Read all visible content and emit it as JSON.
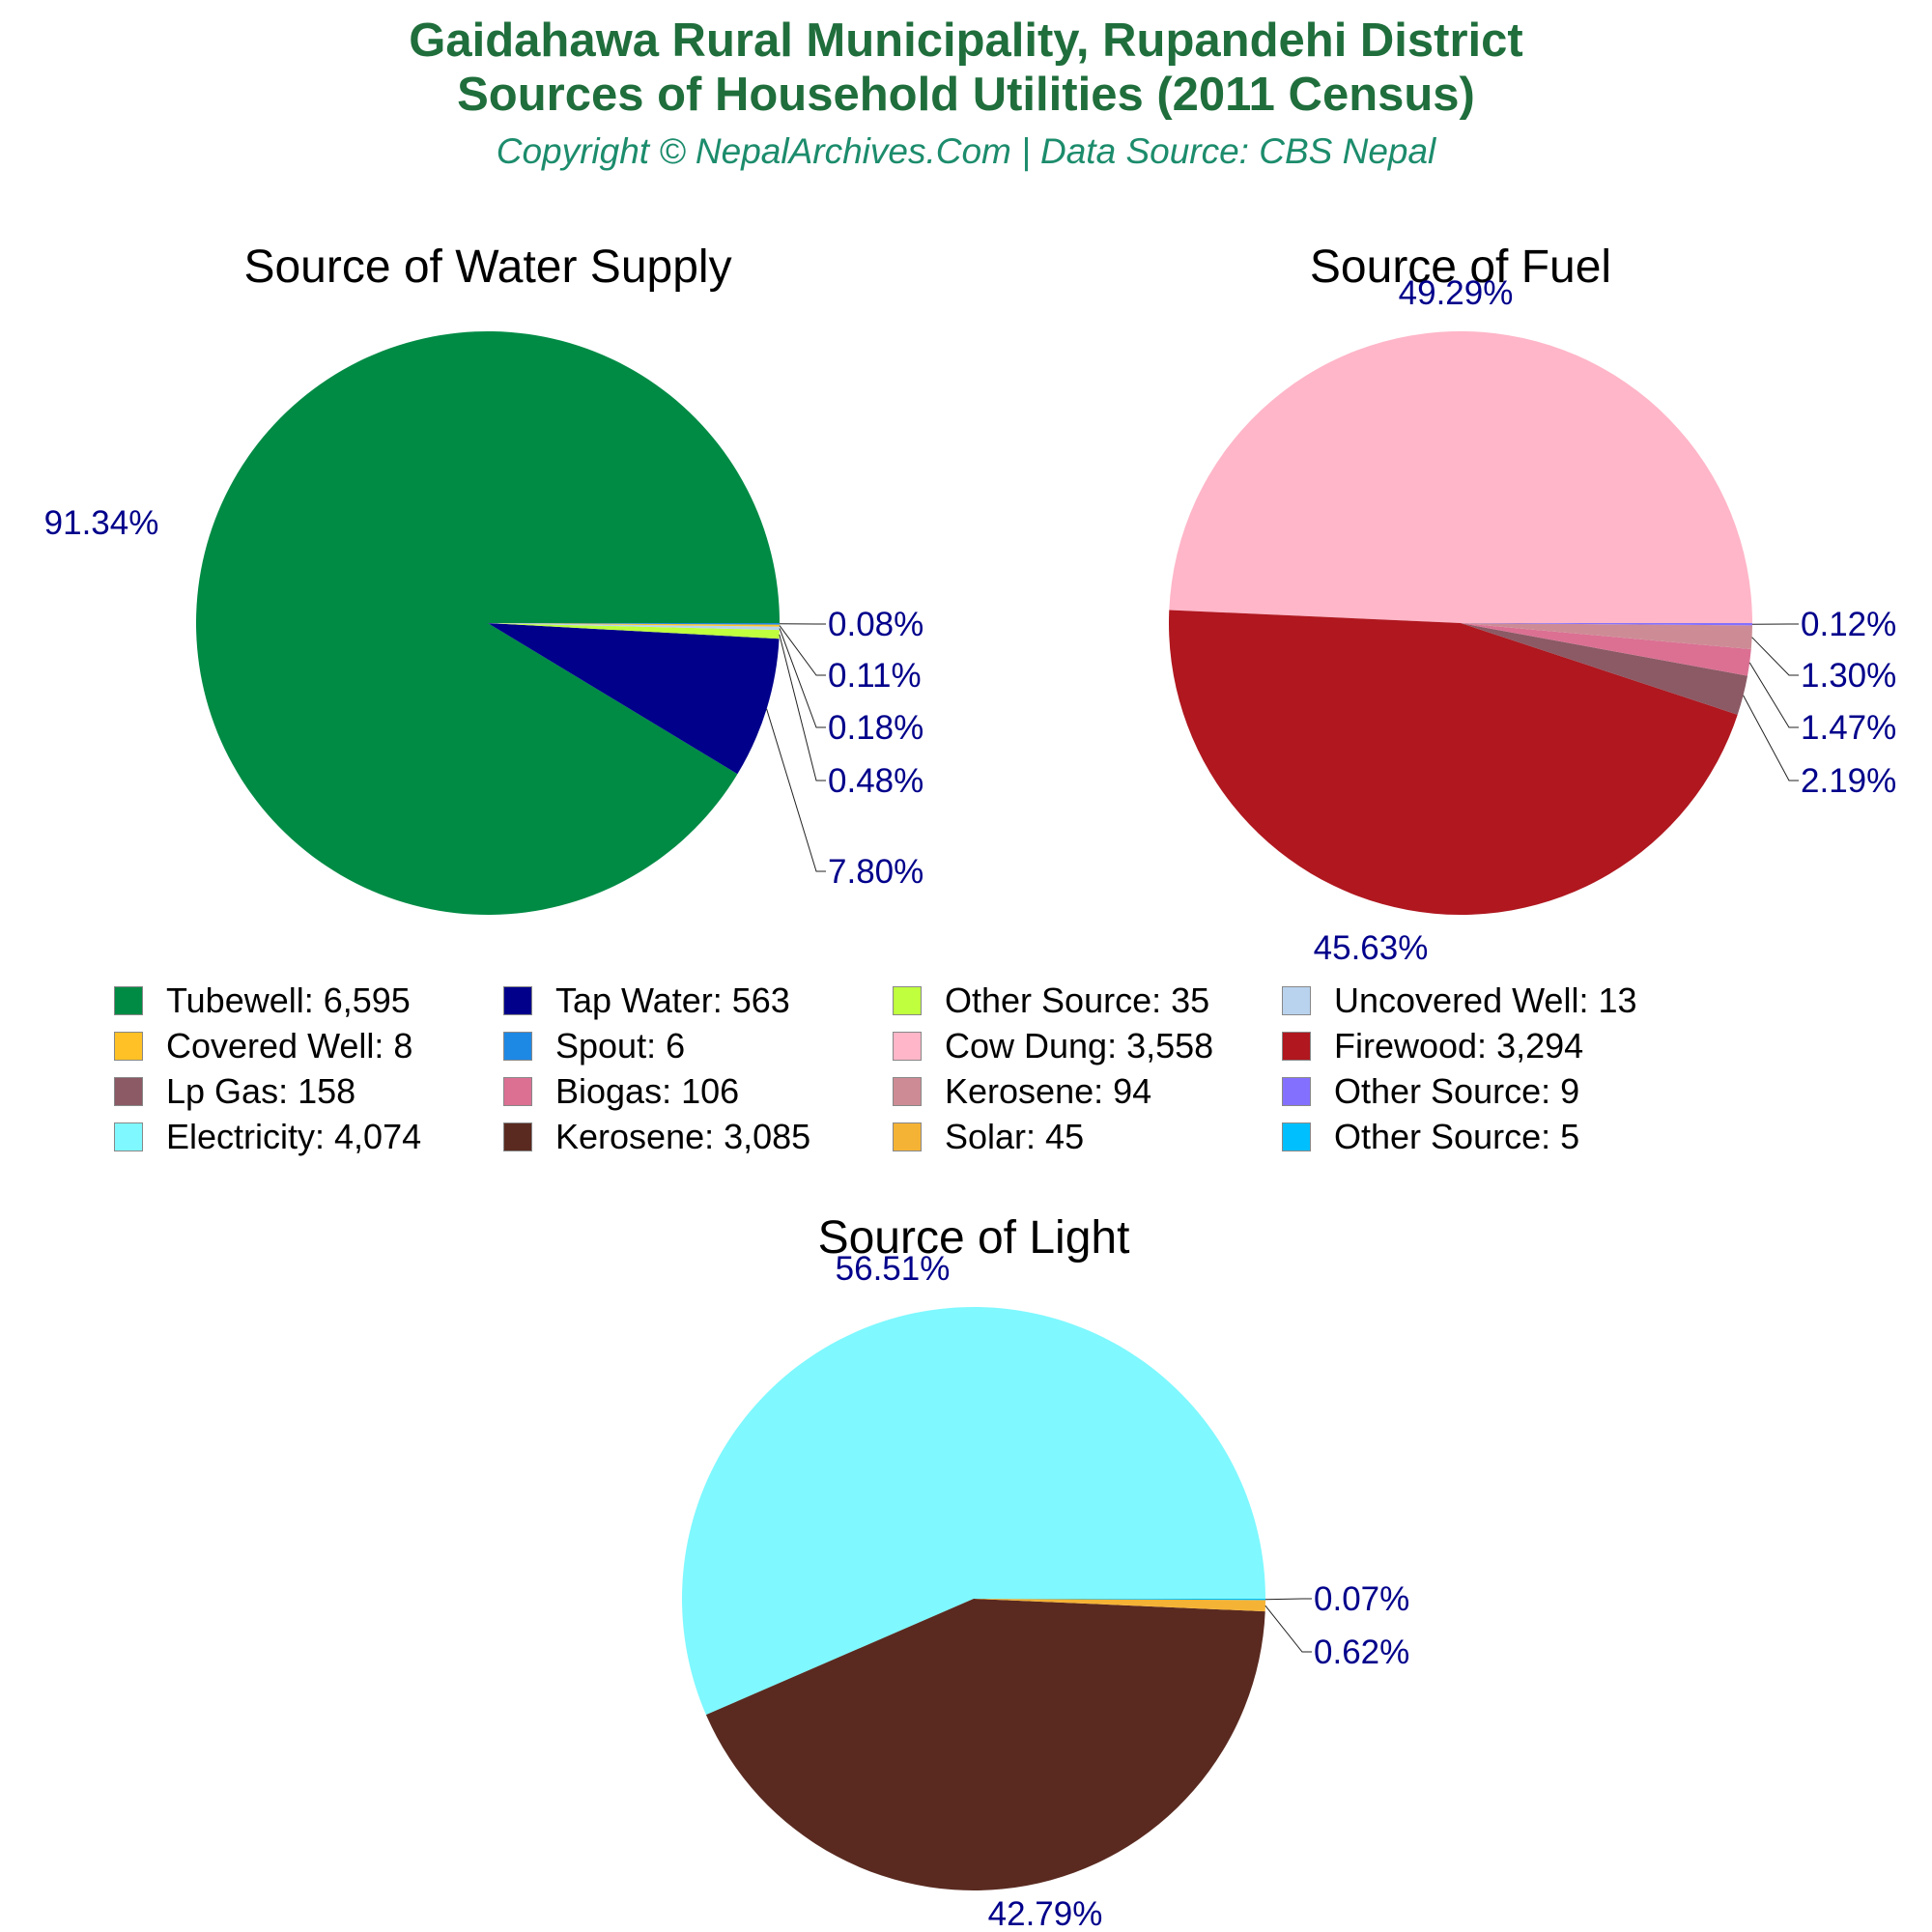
{
  "header": {
    "title_line1": "Gaidahawa Rural Municipality, Rupandehi District",
    "title_line2": "Sources of Household Utilities (2011 Census)",
    "copyright": "Copyright © NepalArchives.Com | Data Source: CBS Nepal"
  },
  "chart_data": [
    {
      "type": "pie",
      "title": "Source of Water Supply",
      "slices": [
        {
          "label": "Tubewell",
          "value": 6595,
          "percent_label": "91.34%",
          "color": "#008b45"
        },
        {
          "label": "Tap Water",
          "value": 563,
          "percent_label": "7.80%",
          "color": "#00008b"
        },
        {
          "label": "Other Source",
          "value": 35,
          "percent_label": "0.48%",
          "color": "#c0ff3e"
        },
        {
          "label": "Uncovered Well",
          "value": 13,
          "percent_label": "0.18%",
          "color": "#b9d3ee"
        },
        {
          "label": "Covered Well",
          "value": 8,
          "percent_label": "0.11%",
          "color": "#ffc125"
        },
        {
          "label": "Spout",
          "value": 6,
          "percent_label": "0.08%",
          "color": "#1e88e5"
        }
      ]
    },
    {
      "type": "pie",
      "title": "Source of Fuel",
      "slices": [
        {
          "label": "Cow Dung",
          "value": 3558,
          "percent_label": "49.29%",
          "color": "#ffb6c8"
        },
        {
          "label": "Firewood",
          "value": 3294,
          "percent_label": "45.63%",
          "color": "#b0171f"
        },
        {
          "label": "Lp Gas",
          "value": 158,
          "percent_label": "2.19%",
          "color": "#8b5a65"
        },
        {
          "label": "Biogas",
          "value": 106,
          "percent_label": "1.47%",
          "color": "#db7093"
        },
        {
          "label": "Kerosene",
          "value": 94,
          "percent_label": "1.30%",
          "color": "#cd8c95"
        },
        {
          "label": "Other Source",
          "value": 9,
          "percent_label": "0.12%",
          "color": "#8470ff"
        }
      ]
    },
    {
      "type": "pie",
      "title": "Source of Light",
      "slices": [
        {
          "label": "Electricity",
          "value": 4074,
          "percent_label": "56.51%",
          "color": "#7ff8ff"
        },
        {
          "label": "Kerosene",
          "value": 3085,
          "percent_label": "42.79%",
          "color": "#5a2a20"
        },
        {
          "label": "Solar",
          "value": 45,
          "percent_label": "0.62%",
          "color": "#f5b335"
        },
        {
          "label": "Other Source",
          "value": 5,
          "percent_label": "0.07%",
          "color": "#00bfff"
        }
      ]
    }
  ],
  "legend": [
    {
      "text": "Tubewell: 6,595",
      "color": "#008b45"
    },
    {
      "text": "Tap Water: 563",
      "color": "#00008b"
    },
    {
      "text": "Other Source: 35",
      "color": "#c0ff3e"
    },
    {
      "text": "Uncovered Well: 13",
      "color": "#b9d3ee"
    },
    {
      "text": "Covered Well: 8",
      "color": "#ffc125"
    },
    {
      "text": "Spout: 6",
      "color": "#1e88e5"
    },
    {
      "text": "Cow Dung: 3,558",
      "color": "#ffb6c8"
    },
    {
      "text": "Firewood: 3,294",
      "color": "#b0171f"
    },
    {
      "text": "Lp Gas: 158",
      "color": "#8b5a65"
    },
    {
      "text": "Biogas: 106",
      "color": "#db7093"
    },
    {
      "text": "Kerosene: 94",
      "color": "#cd8c95"
    },
    {
      "text": "Other Source: 9",
      "color": "#8470ff"
    },
    {
      "text": "Electricity: 4,074",
      "color": "#7ff8ff"
    },
    {
      "text": "Kerosene: 3,085",
      "color": "#5a2a20"
    },
    {
      "text": "Solar: 45",
      "color": "#f5b335"
    },
    {
      "text": "Other Source: 5",
      "color": "#00bfff"
    }
  ],
  "colors": {
    "title": "#1f6e3c",
    "copyright": "#1c8c6c",
    "percent_label": "#00008b"
  }
}
